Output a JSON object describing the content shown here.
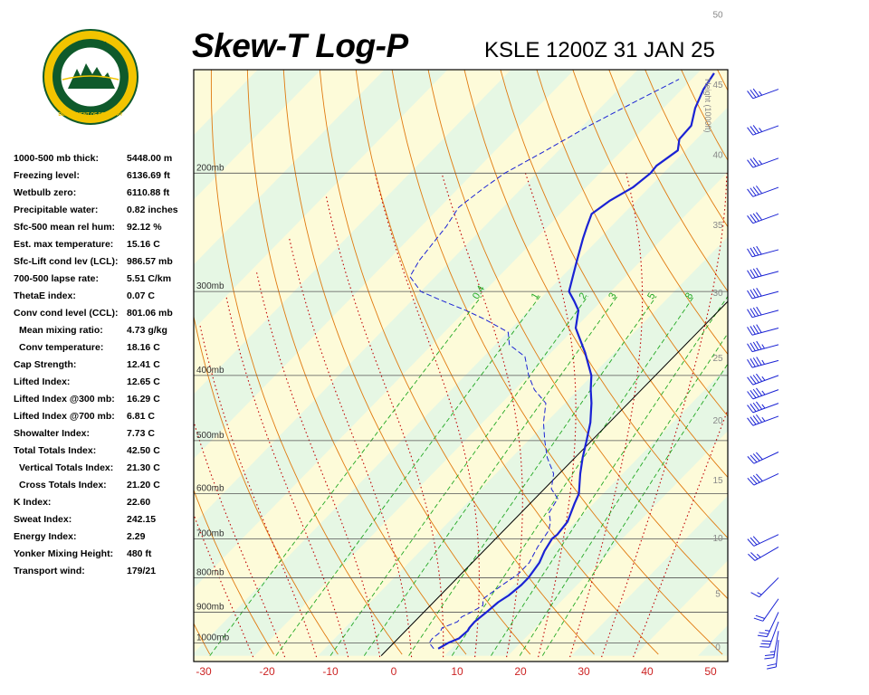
{
  "header": {
    "title": "Skew-T Log-P",
    "station": "KSLE 1200Z 31 JAN 25"
  },
  "logo": {
    "text_top": "OREGON",
    "text_bottom": "DEPARTMENT OF FORESTRY"
  },
  "indices": [
    {
      "label": "1000-500 mb thick:",
      "value": "5448.00 m"
    },
    {
      "label": "Freezing level:",
      "value": "6136.69 ft"
    },
    {
      "label": "Wetbulb zero:",
      "value": "6110.88 ft"
    },
    {
      "label": "Precipitable water:",
      "value": "0.82 inches"
    },
    {
      "label": "Sfc-500 mean rel hum:",
      "value": "92.12 %"
    },
    {
      "label": "Est. max temperature:",
      "value": "15.16 C"
    },
    {
      "label": "Sfc-Lift cond lev (LCL):",
      "value": "986.57 mb"
    },
    {
      "label": "700-500 lapse rate:",
      "value": "5.51 C/km"
    },
    {
      "label": "ThetaE index:",
      "value": "0.07 C"
    },
    {
      "label": "Conv cond level (CCL):",
      "value": "801.06 mb"
    },
    {
      "label": "Mean mixing ratio:",
      "value": "4.73 g/kg",
      "indent": true
    },
    {
      "label": "Conv temperature:",
      "value": "18.16 C",
      "indent": true
    },
    {
      "label": "Cap Strength:",
      "value": "12.41 C"
    },
    {
      "label": "Lifted Index:",
      "value": "12.65 C"
    },
    {
      "label": "Lifted Index @300 mb:",
      "value": "16.29 C"
    },
    {
      "label": "Lifted Index @700 mb:",
      "value": "6.81 C"
    },
    {
      "label": "Showalter Index:",
      "value": "7.73 C"
    },
    {
      "label": "Total Totals Index:",
      "value": "42.50 C"
    },
    {
      "label": "Vertical Totals Index:",
      "value": "21.30 C",
      "indent": true
    },
    {
      "label": "Cross Totals Index:",
      "value": "21.20 C",
      "indent": true
    },
    {
      "label": "K Index:",
      "value": "22.60"
    },
    {
      "label": "Sweat Index:",
      "value": "242.15"
    },
    {
      "label": "Energy Index:",
      "value": "2.29"
    },
    {
      "label": "Yonker Mixing Height:",
      "value": "480 ft"
    },
    {
      "label": "Transport wind:",
      "value": "179/21"
    }
  ],
  "chart_data": {
    "type": "line",
    "title": "Skew-T Log-P",
    "xlabel": "",
    "ylabel": "",
    "x_ticks": [
      -30,
      -20,
      -10,
      0,
      10,
      20,
      30,
      40,
      50
    ],
    "pressure_levels": [
      1000,
      900,
      800,
      700,
      600,
      500,
      400,
      300,
      200
    ],
    "pressure_labels": [
      "1000mb",
      "900mb",
      "800mb",
      "700mb",
      "600mb",
      "500mb",
      "400mb",
      "300mb",
      "200mb"
    ],
    "height_axis_label": "Height (1000ft)",
    "height_ticks": [
      0,
      5,
      10,
      15,
      20,
      25,
      30,
      35,
      40,
      45,
      50
    ],
    "mixing_ratio_labels": [
      "0.4",
      "1",
      "2",
      "3",
      "5",
      "8"
    ],
    "xlim": [
      -30,
      50
    ],
    "plim": [
      1045,
      140
    ],
    "colors": {
      "temperature": "#1a22d4",
      "dewpoint": "#1a22d4",
      "dry_adiabat": "#e07a10",
      "moist_adiabat": "#c00000",
      "mixing_ratio": "#22a822",
      "isobar": "#555555",
      "bg_warm": "#fdfbd9",
      "bg_cool": "#e6f7e4",
      "wind_barb": "#1a22d4"
    },
    "series": [
      {
        "values": [
          [
            1020,
            7.9
          ],
          [
            1000,
            8.6
          ],
          [
            985,
            9.6
          ],
          [
            960,
            9.8
          ],
          [
            950,
            9.6
          ],
          [
            930,
            9.5
          ],
          [
            900,
            9.9
          ],
          [
            870,
            10.2
          ],
          [
            850,
            10.8
          ],
          [
            820,
            11.2
          ],
          [
            800,
            11.2
          ],
          [
            760,
            10.6
          ],
          [
            730,
            9.6
          ],
          [
            700,
            8.9
          ],
          [
            690,
            9.1
          ],
          [
            660,
            8.7
          ],
          [
            620,
            7.0
          ],
          [
            600,
            6.2
          ],
          [
            560,
            3.3
          ],
          [
            530,
            1.2
          ],
          [
            500,
            -0.8
          ],
          [
            470,
            -3.0
          ],
          [
            440,
            -5.8
          ],
          [
            420,
            -8.0
          ],
          [
            400,
            -10.1
          ],
          [
            370,
            -14.6
          ],
          [
            340,
            -19.9
          ],
          [
            320,
            -22.2
          ],
          [
            310,
            -24.3
          ],
          [
            300,
            -26.6
          ],
          [
            285,
            -28.3
          ],
          [
            270,
            -30.1
          ],
          [
            250,
            -32.6
          ],
          [
            240,
            -33.8
          ],
          [
            230,
            -35.0
          ],
          [
            220,
            -34.2
          ],
          [
            210,
            -32.6
          ],
          [
            200,
            -32.0
          ],
          [
            195,
            -32.2
          ],
          [
            185,
            -31.2
          ],
          [
            178,
            -32.7
          ],
          [
            170,
            -32.9
          ],
          [
            160,
            -35.0
          ],
          [
            150,
            -36.6
          ],
          [
            142,
            -37.4
          ]
        ]
      },
      {
        "values": [
          [
            1020,
            7.2
          ],
          [
            1000,
            5.6
          ],
          [
            985,
            5.4
          ],
          [
            965,
            5.7
          ],
          [
            950,
            5.3
          ],
          [
            930,
            6.8
          ],
          [
            915,
            6.7
          ],
          [
            900,
            7.5
          ],
          [
            880,
            8.3
          ],
          [
            860,
            7.3
          ],
          [
            850,
            7.5
          ],
          [
            820,
            8.2
          ],
          [
            790,
            9.0
          ],
          [
            760,
            9.0
          ],
          [
            720,
            7.9
          ],
          [
            700,
            7.5
          ],
          [
            680,
            7.1
          ],
          [
            660,
            6.0
          ],
          [
            640,
            4.4
          ],
          [
            610,
            3.6
          ],
          [
            590,
            1.1
          ],
          [
            560,
            -0.9
          ],
          [
            530,
            -4.4
          ],
          [
            500,
            -7.4
          ],
          [
            470,
            -10.4
          ],
          [
            440,
            -13.0
          ],
          [
            420,
            -16.9
          ],
          [
            400,
            -20.0
          ],
          [
            375,
            -23.5
          ],
          [
            360,
            -27.8
          ],
          [
            345,
            -29.9
          ],
          [
            330,
            -35.6
          ],
          [
            320,
            -40.0
          ],
          [
            310,
            -45.0
          ],
          [
            300,
            -50.0
          ],
          [
            285,
            -54.0
          ],
          [
            270,
            -55.0
          ],
          [
            255,
            -55.5
          ],
          [
            240,
            -56.0
          ],
          [
            225,
            -57.0
          ],
          [
            210,
            -56.0
          ],
          [
            200,
            -55.0
          ],
          [
            185,
            -52.0
          ],
          [
            170,
            -49.0
          ],
          [
            155,
            -45.0
          ],
          [
            145,
            -42.0
          ]
        ]
      }
    ],
    "wind_barbs": [
      {
        "p": 990,
        "dir": 185,
        "spd": 20
      },
      {
        "p": 960,
        "dir": 190,
        "spd": 25
      },
      {
        "p": 930,
        "dir": 200,
        "spd": 30
      },
      {
        "p": 900,
        "dir": 205,
        "spd": 25
      },
      {
        "p": 860,
        "dir": 215,
        "spd": 20
      },
      {
        "p": 800,
        "dir": 225,
        "spd": 15
      },
      {
        "p": 720,
        "dir": 240,
        "spd": 25
      },
      {
        "p": 690,
        "dir": 245,
        "spd": 30
      },
      {
        "p": 560,
        "dir": 245,
        "spd": 40
      },
      {
        "p": 520,
        "dir": 245,
        "spd": 40
      },
      {
        "p": 460,
        "dir": 250,
        "spd": 45
      },
      {
        "p": 440,
        "dir": 250,
        "spd": 45
      },
      {
        "p": 420,
        "dir": 250,
        "spd": 45
      },
      {
        "p": 400,
        "dir": 250,
        "spd": 45
      },
      {
        "p": 380,
        "dir": 255,
        "spd": 45
      },
      {
        "p": 360,
        "dir": 255,
        "spd": 45
      },
      {
        "p": 340,
        "dir": 255,
        "spd": 40
      },
      {
        "p": 320,
        "dir": 255,
        "spd": 40
      },
      {
        "p": 300,
        "dir": 255,
        "spd": 40
      },
      {
        "p": 280,
        "dir": 255,
        "spd": 40
      },
      {
        "p": 260,
        "dir": 255,
        "spd": 40
      },
      {
        "p": 230,
        "dir": 250,
        "spd": 40
      },
      {
        "p": 210,
        "dir": 250,
        "spd": 40
      },
      {
        "p": 190,
        "dir": 250,
        "spd": 35
      },
      {
        "p": 170,
        "dir": 250,
        "spd": 35
      },
      {
        "p": 150,
        "dir": 250,
        "spd": 35
      }
    ]
  }
}
